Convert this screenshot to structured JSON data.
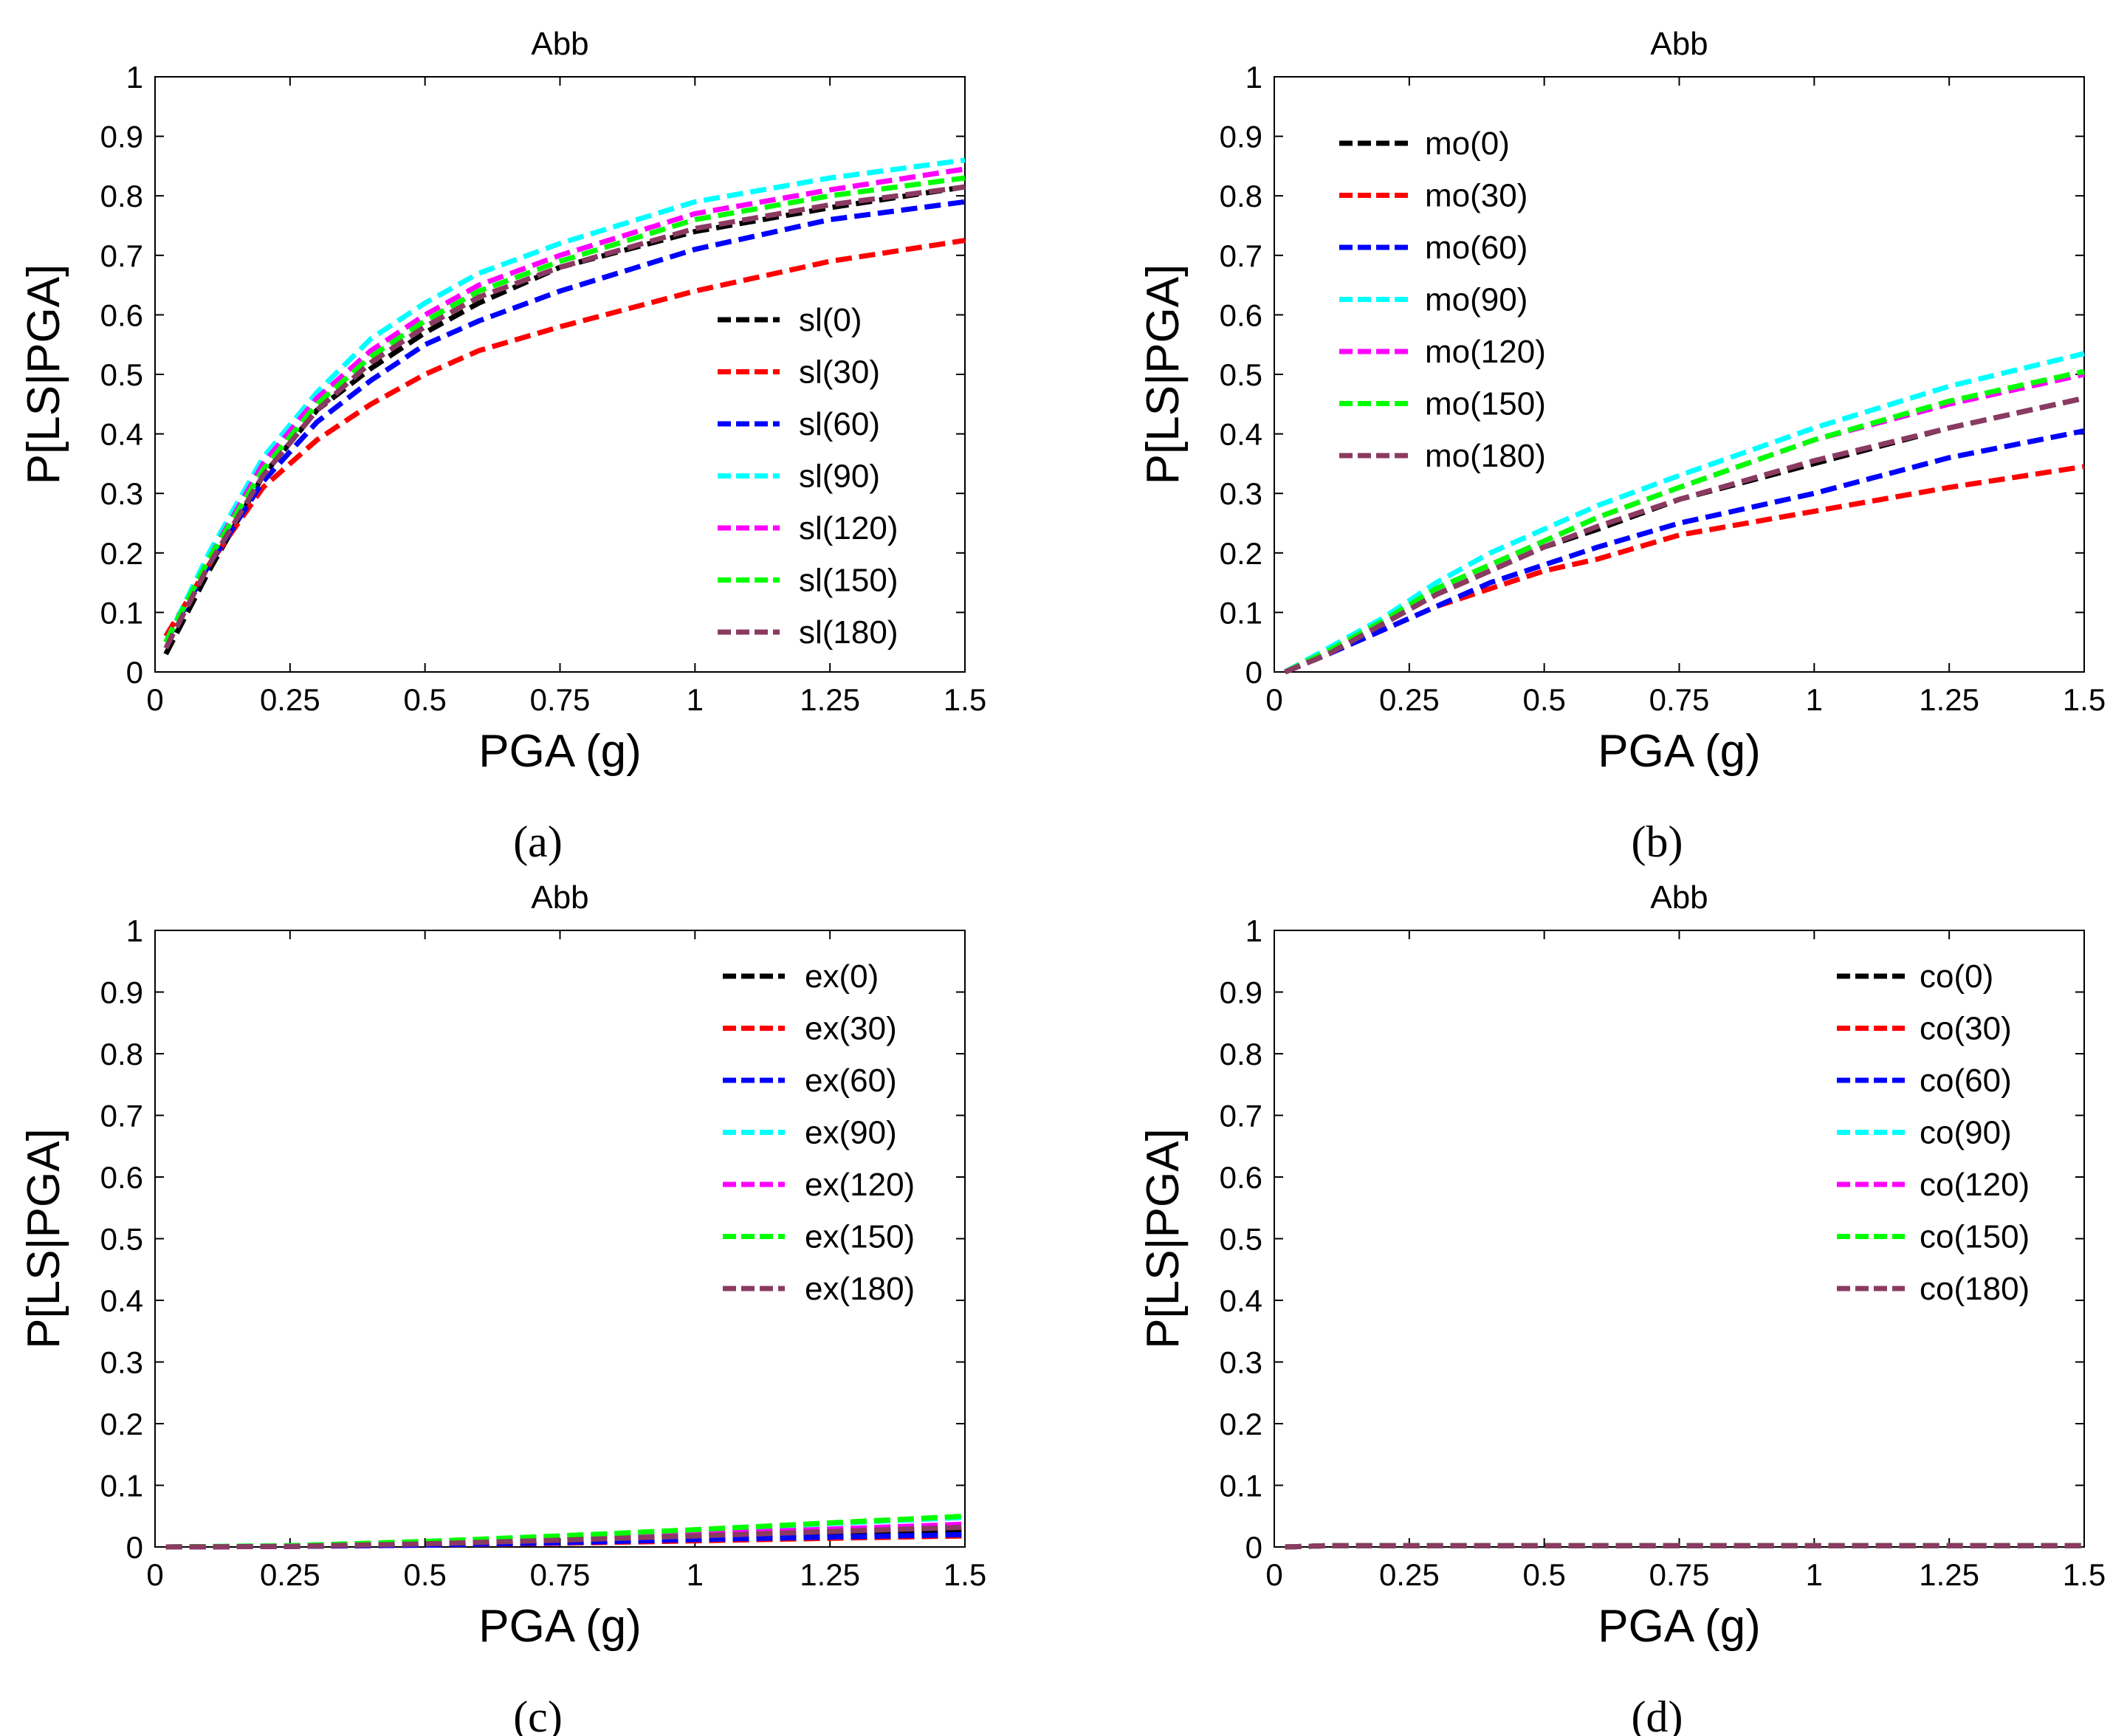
{
  "chart_data": [
    {
      "type": "line",
      "panel": "a",
      "caption": "(a)",
      "title": "Abb",
      "xlabel": "PGA (g)",
      "ylabel": "P[LS|PGA]",
      "xlim": [
        0,
        1.5
      ],
      "ylim": [
        0,
        1
      ],
      "xticks": [
        "0",
        "0.25",
        "0.5",
        "0.75",
        "1",
        "1.25",
        "1.5"
      ],
      "yticks": [
        "0",
        "0.1",
        "0.2",
        "0.3",
        "0.4",
        "0.5",
        "0.6",
        "0.7",
        "0.8",
        "0.9",
        "1"
      ],
      "legend_position": "right-middle",
      "grid": false,
      "x": [
        0.02,
        0.1,
        0.2,
        0.3,
        0.4,
        0.5,
        0.6,
        0.75,
        1.0,
        1.25,
        1.5
      ],
      "series": [
        {
          "name": "sl(0)",
          "color": "#000000",
          "values": [
            0.03,
            0.17,
            0.33,
            0.44,
            0.51,
            0.57,
            0.62,
            0.68,
            0.74,
            0.78,
            0.815
          ]
        },
        {
          "name": "sl(30)",
          "color": "#ff0000",
          "values": [
            0.06,
            0.18,
            0.31,
            0.39,
            0.45,
            0.5,
            0.54,
            0.58,
            0.64,
            0.69,
            0.725
          ]
        },
        {
          "name": "sl(60)",
          "color": "#0000ff",
          "values": [
            0.05,
            0.18,
            0.32,
            0.42,
            0.49,
            0.55,
            0.59,
            0.64,
            0.71,
            0.76,
            0.79
          ]
        },
        {
          "name": "sl(90)",
          "color": "#00ffff",
          "values": [
            0.05,
            0.2,
            0.36,
            0.47,
            0.56,
            0.62,
            0.67,
            0.72,
            0.79,
            0.83,
            0.86
          ]
        },
        {
          "name": "sl(120)",
          "color": "#ff00ff",
          "values": [
            0.05,
            0.19,
            0.35,
            0.46,
            0.54,
            0.6,
            0.65,
            0.7,
            0.77,
            0.81,
            0.845
          ]
        },
        {
          "name": "sl(150)",
          "color": "#00ff00",
          "values": [
            0.05,
            0.19,
            0.34,
            0.45,
            0.53,
            0.59,
            0.64,
            0.69,
            0.76,
            0.8,
            0.83
          ]
        },
        {
          "name": "sl(180)",
          "color": "#8b3a62",
          "values": [
            0.04,
            0.18,
            0.33,
            0.44,
            0.52,
            0.58,
            0.63,
            0.68,
            0.745,
            0.785,
            0.815
          ]
        }
      ]
    },
    {
      "type": "line",
      "panel": "b",
      "caption": "(b)",
      "title": "Abb",
      "xlabel": "PGA (g)",
      "ylabel": "P[LS|PGA]",
      "xlim": [
        0,
        1.5
      ],
      "ylim": [
        0,
        1
      ],
      "xticks": [
        "0",
        "0.25",
        "0.5",
        "0.75",
        "1",
        "1.25",
        "1.5"
      ],
      "yticks": [
        "0",
        "0.1",
        "0.2",
        "0.3",
        "0.4",
        "0.5",
        "0.6",
        "0.7",
        "0.8",
        "0.9",
        "1"
      ],
      "legend_position": "top-left",
      "grid": false,
      "x": [
        0.02,
        0.1,
        0.2,
        0.3,
        0.4,
        0.5,
        0.6,
        0.75,
        1.0,
        1.25,
        1.5
      ],
      "series": [
        {
          "name": "mo(0)",
          "color": "#000000",
          "values": [
            0.0,
            0.03,
            0.08,
            0.13,
            0.17,
            0.21,
            0.24,
            0.29,
            0.35,
            0.41,
            0.46
          ]
        },
        {
          "name": "mo(30)",
          "color": "#ff0000",
          "values": [
            0.0,
            0.03,
            0.07,
            0.11,
            0.14,
            0.17,
            0.19,
            0.23,
            0.27,
            0.31,
            0.345
          ]
        },
        {
          "name": "mo(60)",
          "color": "#0000ff",
          "values": [
            0.0,
            0.03,
            0.07,
            0.11,
            0.15,
            0.18,
            0.21,
            0.25,
            0.3,
            0.36,
            0.405
          ]
        },
        {
          "name": "mo(90)",
          "color": "#00ffff",
          "values": [
            0.0,
            0.04,
            0.09,
            0.15,
            0.2,
            0.24,
            0.28,
            0.33,
            0.41,
            0.48,
            0.535
          ]
        },
        {
          "name": "mo(120)",
          "color": "#ff00ff",
          "values": [
            0.0,
            0.035,
            0.085,
            0.14,
            0.18,
            0.22,
            0.26,
            0.31,
            0.39,
            0.45,
            0.5
          ]
        },
        {
          "name": "mo(150)",
          "color": "#00ff00",
          "values": [
            0.0,
            0.035,
            0.085,
            0.14,
            0.18,
            0.22,
            0.26,
            0.31,
            0.39,
            0.455,
            0.505
          ]
        },
        {
          "name": "mo(180)",
          "color": "#8b3a62",
          "values": [
            0.0,
            0.03,
            0.08,
            0.13,
            0.17,
            0.21,
            0.245,
            0.29,
            0.355,
            0.41,
            0.46
          ]
        }
      ]
    },
    {
      "type": "line",
      "panel": "c",
      "caption": "(c)",
      "title": "Abb",
      "xlabel": "PGA (g)",
      "ylabel": "P[LS|PGA]",
      "xlim": [
        0,
        1.5
      ],
      "ylim": [
        0,
        1
      ],
      "xticks": [
        "0",
        "0.25",
        "0.5",
        "0.75",
        "1",
        "1.25",
        "1.5"
      ],
      "yticks": [
        "0",
        "0.1",
        "0.2",
        "0.3",
        "0.4",
        "0.5",
        "0.6",
        "0.7",
        "0.8",
        "0.9",
        "1"
      ],
      "legend_position": "top-right",
      "grid": false,
      "x": [
        0.02,
        0.25,
        0.5,
        0.75,
        1.0,
        1.25,
        1.5
      ],
      "series": [
        {
          "name": "ex(0)",
          "color": "#000000",
          "values": [
            0.0,
            0.001,
            0.004,
            0.01,
            0.016,
            0.022,
            0.028
          ]
        },
        {
          "name": "ex(30)",
          "color": "#ff0000",
          "values": [
            0.0,
            0.001,
            0.003,
            0.006,
            0.01,
            0.014,
            0.018
          ]
        },
        {
          "name": "ex(60)",
          "color": "#0000ff",
          "values": [
            0.0,
            0.001,
            0.003,
            0.007,
            0.012,
            0.016,
            0.02
          ]
        },
        {
          "name": "ex(90)",
          "color": "#00ffff",
          "values": [
            0.0,
            0.002,
            0.008,
            0.017,
            0.027,
            0.038,
            0.048
          ]
        },
        {
          "name": "ex(120)",
          "color": "#ff00ff",
          "values": [
            0.0,
            0.001,
            0.006,
            0.013,
            0.021,
            0.029,
            0.037
          ]
        },
        {
          "name": "ex(150)",
          "color": "#00ff00",
          "values": [
            0.0,
            0.002,
            0.009,
            0.018,
            0.028,
            0.039,
            0.05
          ]
        },
        {
          "name": "ex(180)",
          "color": "#8b3a62",
          "values": [
            0.0,
            0.001,
            0.005,
            0.011,
            0.018,
            0.025,
            0.032
          ]
        }
      ]
    },
    {
      "type": "line",
      "panel": "d",
      "caption": "(d)",
      "title": "Abb",
      "xlabel": "PGA (g)",
      "ylabel": "P[LS|PGA]",
      "xlim": [
        0,
        1.5
      ],
      "ylim": [
        0,
        1
      ],
      "xticks": [
        "0",
        "0.25",
        "0.5",
        "0.75",
        "1",
        "1.25",
        "1.5"
      ],
      "yticks": [
        "0",
        "0.1",
        "0.2",
        "0.3",
        "0.4",
        "0.5",
        "0.6",
        "0.7",
        "0.8",
        "0.9",
        "1"
      ],
      "legend_position": "top-right",
      "grid": false,
      "x": [
        0.02,
        0.1,
        0.5,
        1.0,
        1.5
      ],
      "series": [
        {
          "name": "co(0)",
          "color": "#000000",
          "values": [
            0.0,
            0.002,
            0.002,
            0.002,
            0.002
          ]
        },
        {
          "name": "co(30)",
          "color": "#ff0000",
          "values": [
            0.0,
            0.002,
            0.002,
            0.002,
            0.002
          ]
        },
        {
          "name": "co(60)",
          "color": "#0000ff",
          "values": [
            0.0,
            0.002,
            0.002,
            0.002,
            0.002
          ]
        },
        {
          "name": "co(90)",
          "color": "#00ffff",
          "values": [
            0.0,
            0.002,
            0.002,
            0.002,
            0.002
          ]
        },
        {
          "name": "co(120)",
          "color": "#ff00ff",
          "values": [
            0.0,
            0.002,
            0.002,
            0.002,
            0.002
          ]
        },
        {
          "name": "co(150)",
          "color": "#00ff00",
          "values": [
            0.0,
            0.002,
            0.002,
            0.002,
            0.002
          ]
        },
        {
          "name": "co(180)",
          "color": "#8b3a62",
          "values": [
            0.0,
            0.002,
            0.002,
            0.002,
            0.002
          ]
        }
      ]
    }
  ]
}
